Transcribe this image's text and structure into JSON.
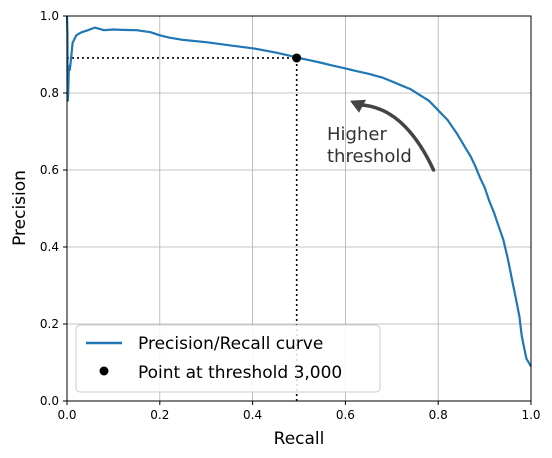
{
  "chart_data": {
    "type": "line",
    "xlabel": "Recall",
    "ylabel": "Precision",
    "xlim": [
      0,
      1
    ],
    "ylim": [
      0,
      1
    ],
    "x_ticks": [
      "0.0",
      "0.2",
      "0.4",
      "0.6",
      "0.8",
      "1.0"
    ],
    "y_ticks": [
      "0.0",
      "0.2",
      "0.4",
      "0.6",
      "0.8",
      "1.0"
    ],
    "grid": true,
    "legend_placement": "lower-left",
    "series": [
      {
        "name": "Precision/Recall curve",
        "color": "#1f77b4",
        "points": [
          [
            1.0,
            0.09
          ],
          [
            0.995,
            0.1
          ],
          [
            0.99,
            0.11
          ],
          [
            0.985,
            0.14
          ],
          [
            0.98,
            0.17
          ],
          [
            0.975,
            0.22
          ],
          [
            0.97,
            0.25
          ],
          [
            0.965,
            0.28
          ],
          [
            0.96,
            0.31
          ],
          [
            0.955,
            0.34
          ],
          [
            0.95,
            0.37
          ],
          [
            0.94,
            0.42
          ],
          [
            0.93,
            0.455
          ],
          [
            0.92,
            0.49
          ],
          [
            0.91,
            0.52
          ],
          [
            0.9,
            0.555
          ],
          [
            0.89,
            0.58
          ],
          [
            0.88,
            0.61
          ],
          [
            0.87,
            0.635
          ],
          [
            0.86,
            0.655
          ],
          [
            0.85,
            0.675
          ],
          [
            0.84,
            0.695
          ],
          [
            0.82,
            0.73
          ],
          [
            0.8,
            0.755
          ],
          [
            0.78,
            0.78
          ],
          [
            0.76,
            0.795
          ],
          [
            0.74,
            0.81
          ],
          [
            0.72,
            0.82
          ],
          [
            0.7,
            0.83
          ],
          [
            0.68,
            0.84
          ],
          [
            0.65,
            0.85
          ],
          [
            0.62,
            0.858
          ],
          [
            0.6,
            0.864
          ],
          [
            0.57,
            0.872
          ],
          [
            0.55,
            0.878
          ],
          [
            0.52,
            0.886
          ],
          [
            0.5,
            0.891
          ],
          [
            0.48,
            0.897
          ],
          [
            0.45,
            0.905
          ],
          [
            0.42,
            0.912
          ],
          [
            0.4,
            0.916
          ],
          [
            0.35,
            0.924
          ],
          [
            0.3,
            0.932
          ],
          [
            0.25,
            0.938
          ],
          [
            0.22,
            0.944
          ],
          [
            0.2,
            0.95
          ],
          [
            0.18,
            0.958
          ],
          [
            0.15,
            0.963
          ],
          [
            0.12,
            0.964
          ],
          [
            0.1,
            0.965
          ],
          [
            0.08,
            0.963
          ],
          [
            0.06,
            0.97
          ],
          [
            0.045,
            0.963
          ],
          [
            0.03,
            0.957
          ],
          [
            0.02,
            0.95
          ],
          [
            0.012,
            0.93
          ],
          [
            0.008,
            0.88
          ],
          [
            0.006,
            0.86
          ],
          [
            0.004,
            0.87
          ],
          [
            0.003,
            0.82
          ],
          [
            0.002,
            0.78
          ],
          [
            0.001,
            0.84
          ],
          [
            0.001,
            0.95
          ],
          [
            0.0,
            1.0
          ]
        ]
      },
      {
        "name": "Point at threshold 3,000",
        "color": "#000000",
        "points": [
          [
            0.495,
            0.891
          ]
        ]
      }
    ],
    "threshold_lines": {
      "x": 0.495,
      "y": 0.891
    },
    "annotation": {
      "line1": "Higher",
      "line2": "threshold",
      "arrow_from": [
        0.79,
        0.6
      ],
      "arrow_to": [
        0.61,
        0.78
      ]
    },
    "legend": [
      {
        "label": "Precision/Recall curve",
        "kind": "line",
        "color": "#1f77b4"
      },
      {
        "label": "Point at threshold 3,000",
        "kind": "marker",
        "color": "#000000"
      }
    ]
  }
}
